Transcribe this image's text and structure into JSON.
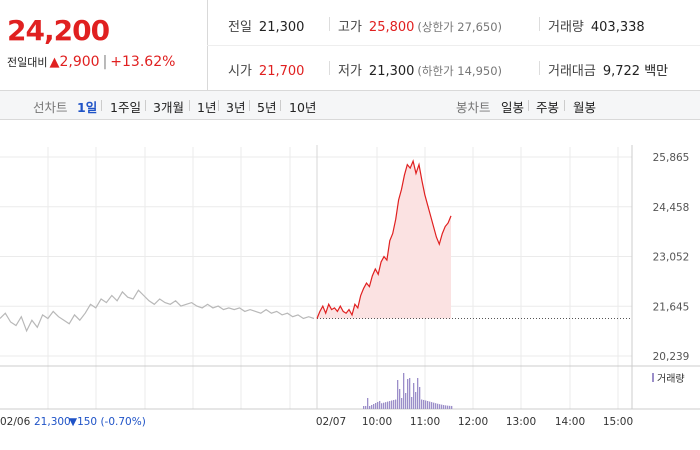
{
  "summary": {
    "price": "24,200",
    "change_label": "전일대비",
    "change_arrow": "▲",
    "change_value": "2,900",
    "change_pct": "+13.62%"
  },
  "stats": {
    "prev_close": {
      "label": "전일",
      "value": "21,300"
    },
    "high": {
      "label": "고가",
      "value": "25,800",
      "sub": "(상한가 27,650)"
    },
    "volume": {
      "label": "거래량",
      "value": "403,338"
    },
    "open": {
      "label": "시가",
      "value": "21,700"
    },
    "low": {
      "label": "저가",
      "value": "21,300",
      "sub": "(하한가 14,950)"
    },
    "amount": {
      "label": "거래대금",
      "value": "9,722 백만"
    }
  },
  "toolbar": {
    "line_label": "선차트",
    "periods": [
      "1일",
      "1주일",
      "3개월",
      "1년",
      "3년",
      "5년",
      "10년"
    ],
    "active_period": "1일",
    "candle_label": "봉차트",
    "candles": [
      "일봉",
      "주봉",
      "월봉"
    ]
  },
  "colors": {
    "up": "#e02020",
    "down": "#1f53c7",
    "prev_line": "#b8b8b8",
    "volume": "#9b8ec9",
    "active": "#1f53c7"
  },
  "chart_data": {
    "type": "line",
    "y_ticks": [
      "25,865",
      "24,458",
      "23,052",
      "21,645",
      "20,239"
    ],
    "ylim": [
      20239,
      25865
    ],
    "x_ticks": [
      "02/06",
      "02/07",
      "10:00",
      "11:00",
      "12:00",
      "13:00",
      "14:00",
      "15:00"
    ],
    "baseline": 21300,
    "volume_legend": "거래량",
    "prev_day_label": "02/06",
    "prev_day_close": "21,300",
    "prev_day_change": "▼150 (-0.70%)",
    "series": [
      {
        "values": [
          21300,
          21450,
          21200,
          21100,
          21350,
          20950,
          21250,
          21050,
          21400,
          21300,
          21500,
          21350,
          21250,
          21150,
          21400,
          21250,
          21450,
          21700,
          21600,
          21850,
          21750,
          21950,
          21800,
          22050,
          21900,
          21850,
          22100,
          21950,
          21800,
          21700,
          21850,
          21750,
          21700,
          21800,
          21650,
          21700,
          21750,
          21650,
          21600,
          21700,
          21600,
          21650,
          21550,
          21600,
          21550,
          21600,
          21500,
          21550,
          21500,
          21450,
          21550,
          21450,
          21500,
          21400,
          21450,
          21350,
          21400,
          21300,
          21350,
          21300
        ]
      },
      {
        "values": [
          21300,
          21500,
          21650,
          21450,
          21700,
          21550,
          21600,
          21500,
          21650,
          21500,
          21450,
          21550,
          21400,
          21700,
          21600,
          21950,
          22150,
          22300,
          22200,
          22500,
          22700,
          22550,
          22900,
          23050,
          22950,
          23500,
          23700,
          24100,
          24650,
          24950,
          25350,
          25650,
          25550,
          25750,
          25400,
          25650,
          25200,
          24800,
          24500,
          24200,
          23900,
          23600,
          23400,
          23700,
          23900,
          24000,
          24200
        ]
      }
    ]
  }
}
